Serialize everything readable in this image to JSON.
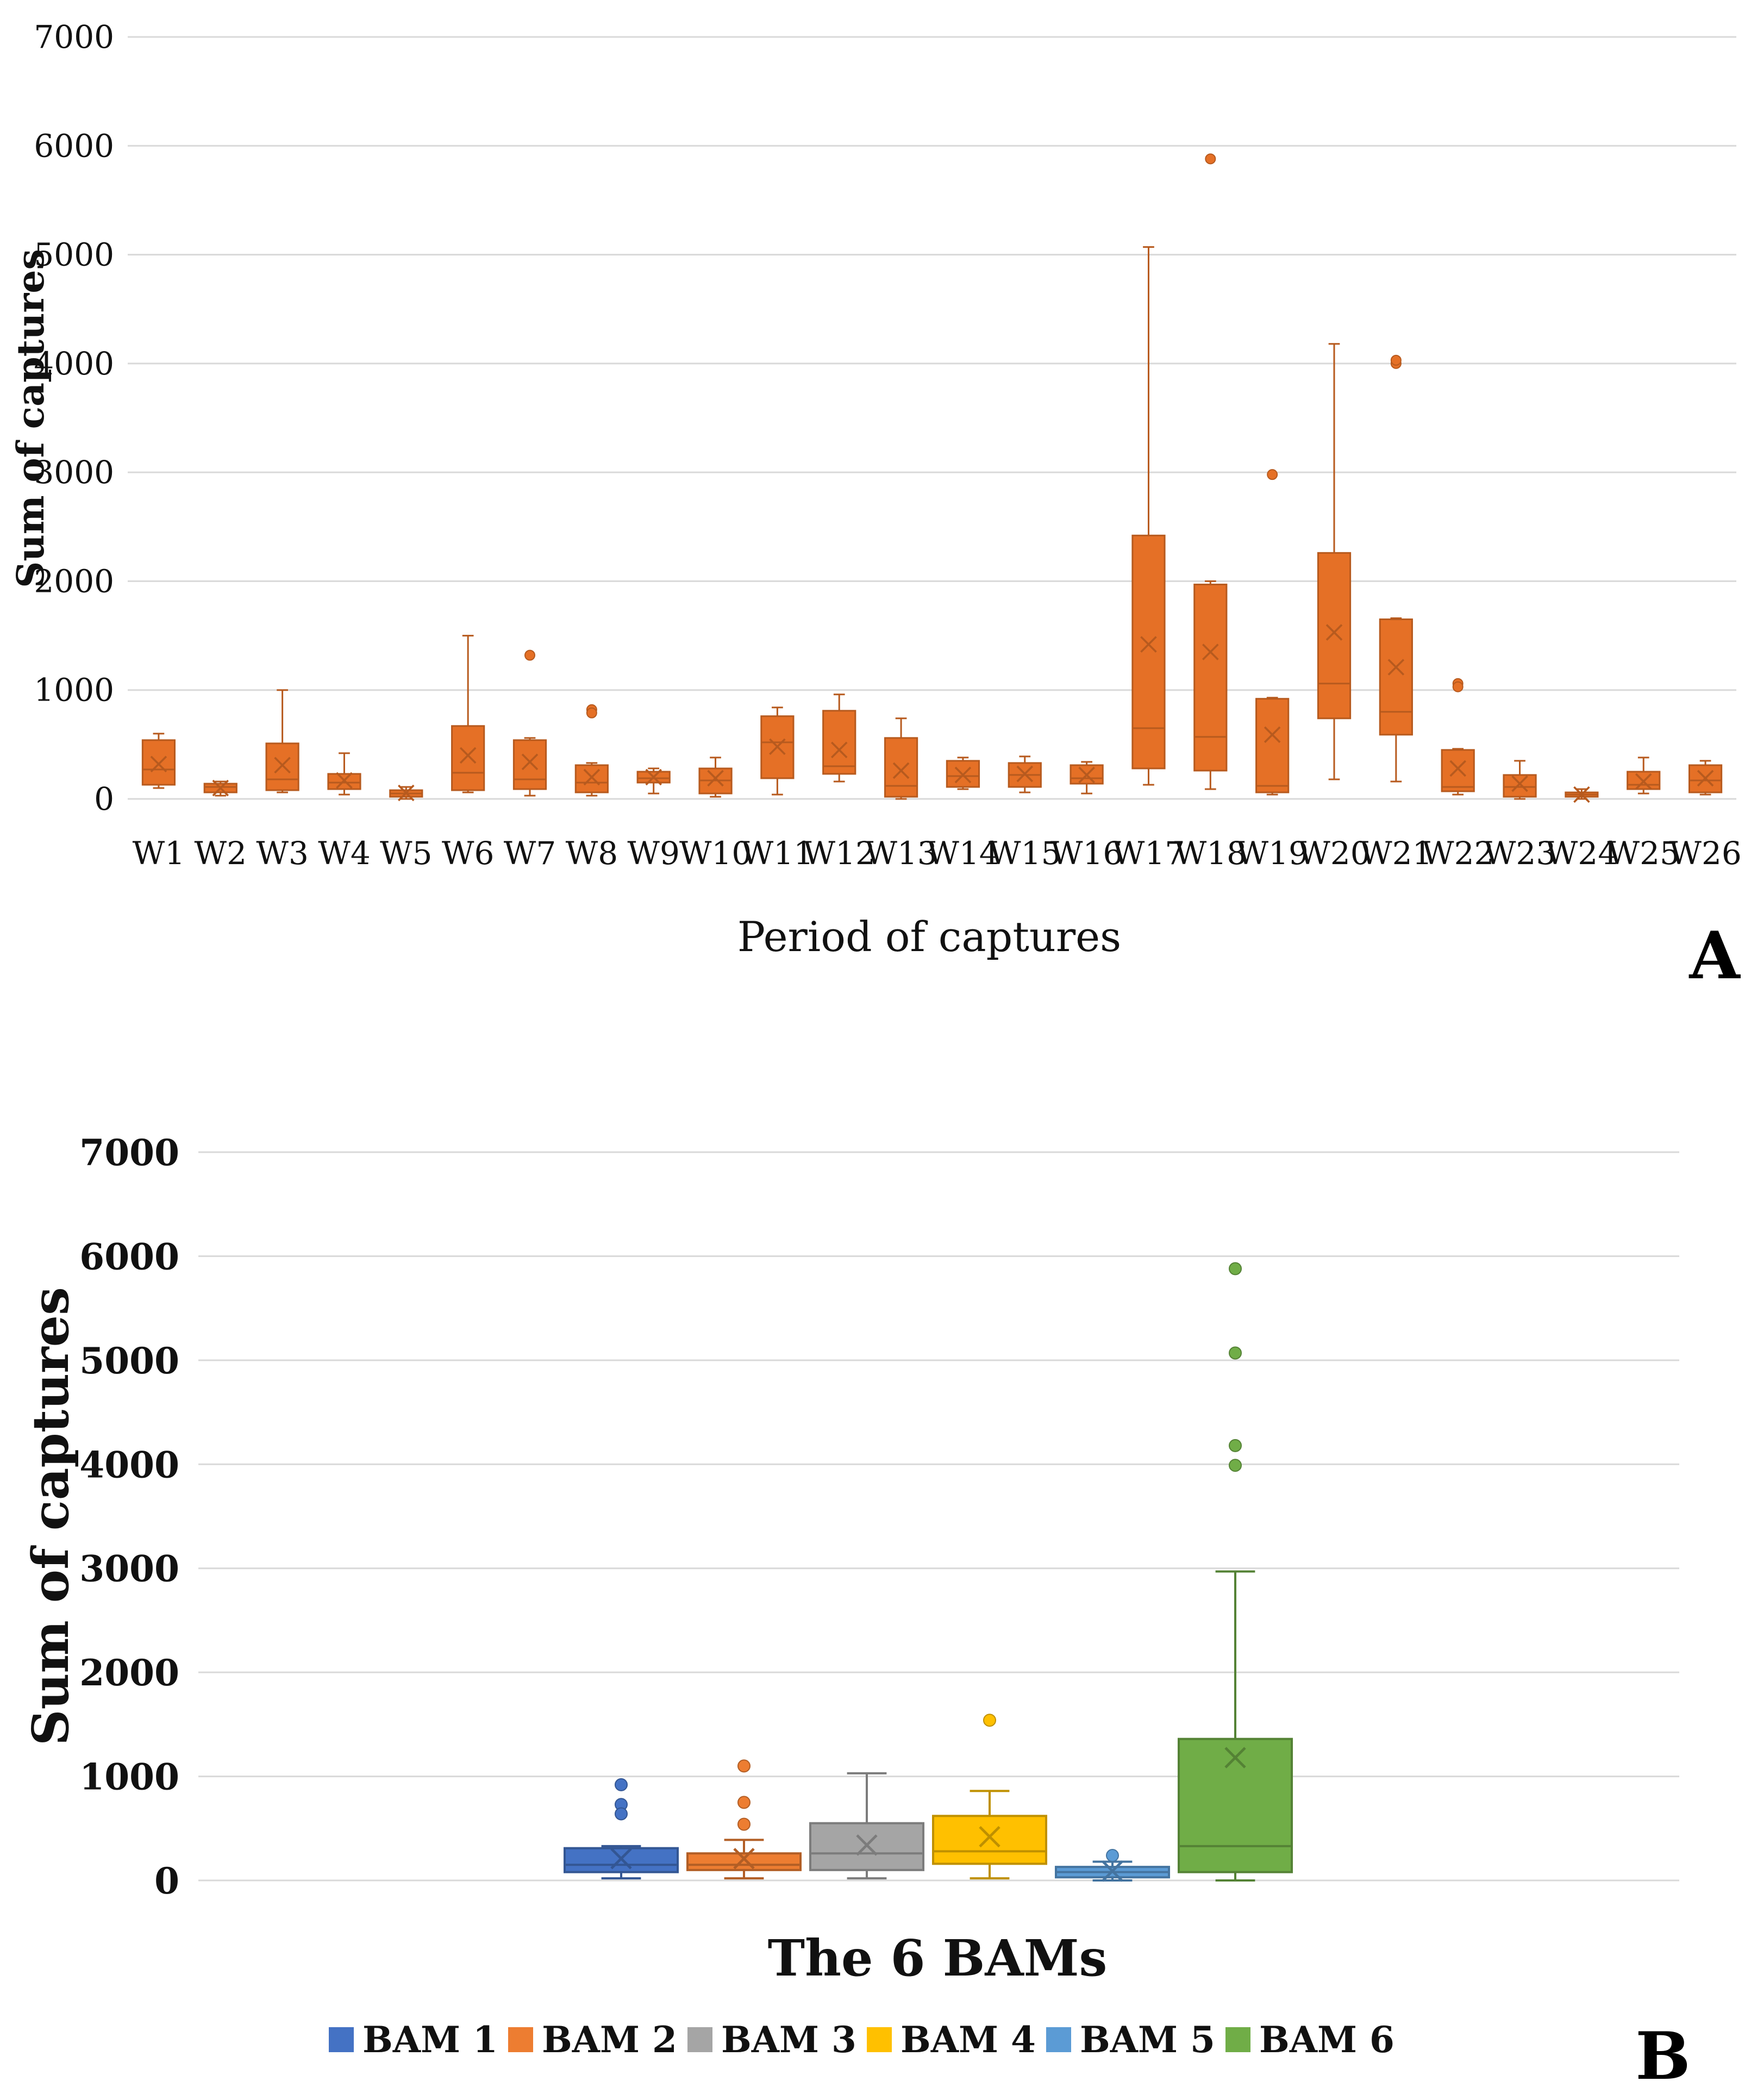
{
  "chart_data": [
    {
      "type": "box",
      "panel_label": "A",
      "ylabel": "Sum of captures",
      "xlabel": "Period of captures",
      "ylim": [
        0,
        7000
      ],
      "yticks": [
        0,
        1000,
        2000,
        3000,
        4000,
        5000,
        6000,
        7000
      ],
      "grid": true,
      "color": "#E57026",
      "categories": [
        "W1",
        "W2",
        "W3",
        "W4",
        "W5",
        "W6",
        "W7",
        "W8",
        "W9",
        "W10",
        "W11",
        "W12",
        "W13",
        "W14",
        "W15",
        "W16",
        "W17",
        "W18",
        "W19",
        "W20",
        "W21",
        "W22",
        "W23",
        "W24",
        "W25",
        "W26"
      ],
      "boxes": [
        {
          "min": 100,
          "q1": 130,
          "median": 270,
          "q3": 540,
          "max": 600,
          "mean": 320,
          "outliers": []
        },
        {
          "min": 30,
          "q1": 60,
          "median": 110,
          "q3": 140,
          "max": 160,
          "mean": 100,
          "outliers": []
        },
        {
          "min": 60,
          "q1": 80,
          "median": 180,
          "q3": 510,
          "max": 1000,
          "mean": 310,
          "outliers": []
        },
        {
          "min": 40,
          "q1": 90,
          "median": 150,
          "q3": 230,
          "max": 420,
          "mean": 170,
          "outliers": []
        },
        {
          "min": 0,
          "q1": 20,
          "median": 50,
          "q3": 80,
          "max": 110,
          "mean": 55,
          "outliers": []
        },
        {
          "min": 60,
          "q1": 80,
          "median": 240,
          "q3": 670,
          "max": 1500,
          "mean": 400,
          "outliers": []
        },
        {
          "min": 30,
          "q1": 90,
          "median": 180,
          "q3": 540,
          "max": 560,
          "mean": 340,
          "outliers": [
            1320
          ]
        },
        {
          "min": 30,
          "q1": 60,
          "median": 150,
          "q3": 310,
          "max": 330,
          "mean": 200,
          "outliers": [
            820,
            790
          ]
        },
        {
          "min": 50,
          "q1": 150,
          "median": 190,
          "q3": 250,
          "max": 280,
          "mean": 200,
          "outliers": []
        },
        {
          "min": 20,
          "q1": 50,
          "median": 170,
          "q3": 280,
          "max": 380,
          "mean": 190,
          "outliers": []
        },
        {
          "min": 40,
          "q1": 190,
          "median": 520,
          "q3": 760,
          "max": 840,
          "mean": 480,
          "outliers": []
        },
        {
          "min": 160,
          "q1": 230,
          "median": 300,
          "q3": 810,
          "max": 960,
          "mean": 450,
          "outliers": []
        },
        {
          "min": 0,
          "q1": 20,
          "median": 120,
          "q3": 560,
          "max": 740,
          "mean": 260,
          "outliers": []
        },
        {
          "min": 90,
          "q1": 110,
          "median": 210,
          "q3": 350,
          "max": 380,
          "mean": 220,
          "outliers": []
        },
        {
          "min": 60,
          "q1": 110,
          "median": 220,
          "q3": 330,
          "max": 390,
          "mean": 230,
          "outliers": []
        },
        {
          "min": 50,
          "q1": 140,
          "median": 190,
          "q3": 310,
          "max": 340,
          "mean": 220,
          "outliers": []
        },
        {
          "min": 130,
          "q1": 280,
          "median": 650,
          "q3": 2420,
          "max": 5070,
          "mean": 1420,
          "outliers": []
        },
        {
          "min": 90,
          "q1": 260,
          "median": 570,
          "q3": 1970,
          "max": 2000,
          "mean": 1350,
          "outliers": [
            5880
          ]
        },
        {
          "min": 40,
          "q1": 60,
          "median": 120,
          "q3": 920,
          "max": 930,
          "mean": 590,
          "outliers": [
            2980
          ]
        },
        {
          "min": 180,
          "q1": 740,
          "median": 1060,
          "q3": 2260,
          "max": 4180,
          "mean": 1530,
          "outliers": []
        },
        {
          "min": 160,
          "q1": 590,
          "median": 800,
          "q3": 1650,
          "max": 1660,
          "mean": 1210,
          "outliers": [
            4000,
            4030
          ]
        },
        {
          "min": 40,
          "q1": 70,
          "median": 110,
          "q3": 450,
          "max": 460,
          "mean": 280,
          "outliers": [
            1060,
            1030
          ]
        },
        {
          "min": 0,
          "q1": 20,
          "median": 110,
          "q3": 220,
          "max": 350,
          "mean": 140,
          "outliers": []
        },
        {
          "min": 0,
          "q1": 20,
          "median": 40,
          "q3": 60,
          "max": 90,
          "mean": 40,
          "outliers": []
        },
        {
          "min": 50,
          "q1": 90,
          "median": 130,
          "q3": 250,
          "max": 380,
          "mean": 160,
          "outliers": []
        },
        {
          "min": 40,
          "q1": 60,
          "median": 170,
          "q3": 310,
          "max": 350,
          "mean": 190,
          "outliers": []
        }
      ]
    },
    {
      "type": "box",
      "panel_label": "B",
      "ylabel": "Sum of captures",
      "xlabel": "The 6 BAMs",
      "ylim": [
        0,
        7000
      ],
      "yticks": [
        0,
        1000,
        2000,
        3000,
        4000,
        5000,
        6000,
        7000
      ],
      "grid": true,
      "legend_position": "bottom",
      "series": [
        {
          "name": "BAM 1",
          "color": "#4472C4",
          "min": 20,
          "q1": 80,
          "median": 150,
          "q3": 310,
          "max": 330,
          "mean": 210,
          "outliers": [
            920,
            730,
            640
          ]
        },
        {
          "name": "BAM 2",
          "color": "#ED7D31",
          "min": 20,
          "q1": 100,
          "median": 150,
          "q3": 260,
          "max": 390,
          "mean": 210,
          "outliers": [
            1100,
            750,
            540
          ]
        },
        {
          "name": "BAM 3",
          "color": "#A5A5A5",
          "min": 20,
          "q1": 100,
          "median": 260,
          "q3": 550,
          "max": 1030,
          "mean": 340,
          "outliers": []
        },
        {
          "name": "BAM 4",
          "color": "#FFC000",
          "min": 20,
          "q1": 160,
          "median": 280,
          "q3": 620,
          "max": 860,
          "mean": 420,
          "outliers": [
            1540
          ]
        },
        {
          "name": "BAM 5",
          "color": "#5B9BD5",
          "min": 0,
          "q1": 30,
          "median": 80,
          "q3": 130,
          "max": 180,
          "mean": 90,
          "outliers": [
            240
          ]
        },
        {
          "name": "BAM 6",
          "color": "#70AD47",
          "min": 0,
          "q1": 80,
          "median": 330,
          "q3": 1360,
          "max": 2970,
          "mean": 1180,
          "outliers": [
            5880,
            5070,
            4180,
            3990
          ]
        }
      ]
    }
  ]
}
